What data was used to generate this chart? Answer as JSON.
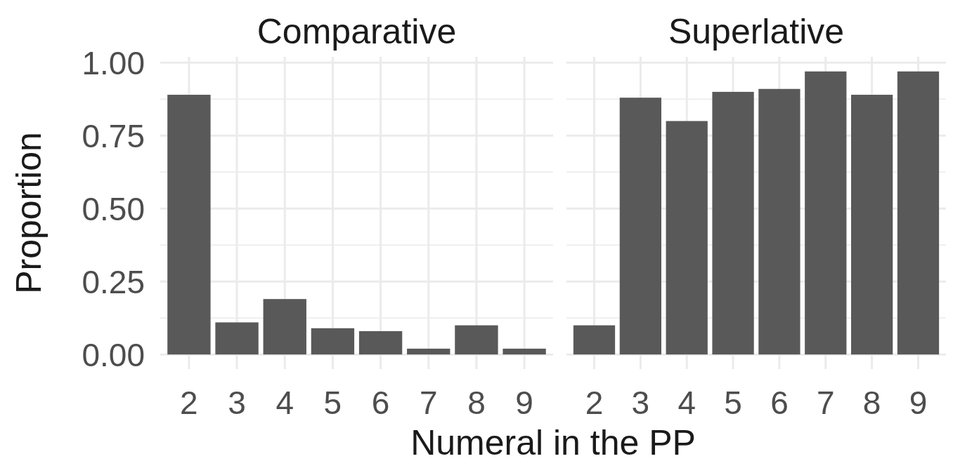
{
  "chart_data": [
    {
      "type": "bar",
      "title": "Comparative",
      "xlabel": "Numeral in the PP",
      "ylabel": "Proportion",
      "categories": [
        "2",
        "3",
        "4",
        "5",
        "6",
        "7",
        "8",
        "9"
      ],
      "values": [
        0.89,
        0.11,
        0.19,
        0.09,
        0.08,
        0.02,
        0.1,
        0.02
      ],
      "color": "#595959",
      "ylim": [
        -0.05,
        1.02
      ],
      "yticks": [
        {
          "value": 0,
          "label": "0.00"
        },
        {
          "value": 0.125,
          "label": null
        },
        {
          "value": 0.25,
          "label": "0.25"
        },
        {
          "value": 0.375,
          "label": null
        },
        {
          "value": 0.5,
          "label": "0.50"
        },
        {
          "value": 0.625,
          "label": null
        },
        {
          "value": 0.75,
          "label": "0.75"
        },
        {
          "value": 0.875,
          "label": null
        },
        {
          "value": 1,
          "label": "1.00"
        }
      ],
      "grid": true
    },
    {
      "type": "bar",
      "title": "Superlative",
      "categories": [
        "2",
        "3",
        "4",
        "5",
        "6",
        "7",
        "8",
        "9"
      ],
      "values": [
        0.1,
        0.88,
        0.8,
        0.9,
        0.91,
        0.97,
        0.89,
        0.97
      ],
      "color": "#595959",
      "ylim": [
        -0.05,
        1.02
      ],
      "yticks": [
        0,
        {
          "value": 0.125,
          "label": null
        },
        0.25,
        {
          "value": 0.375,
          "label": null
        },
        0.5,
        {
          "value": 0.625,
          "label": null
        },
        0.75,
        {
          "value": 0.875,
          "label": null
        },
        1
      ],
      "grid": true,
      "tick_labels": "x"
    }
  ]
}
